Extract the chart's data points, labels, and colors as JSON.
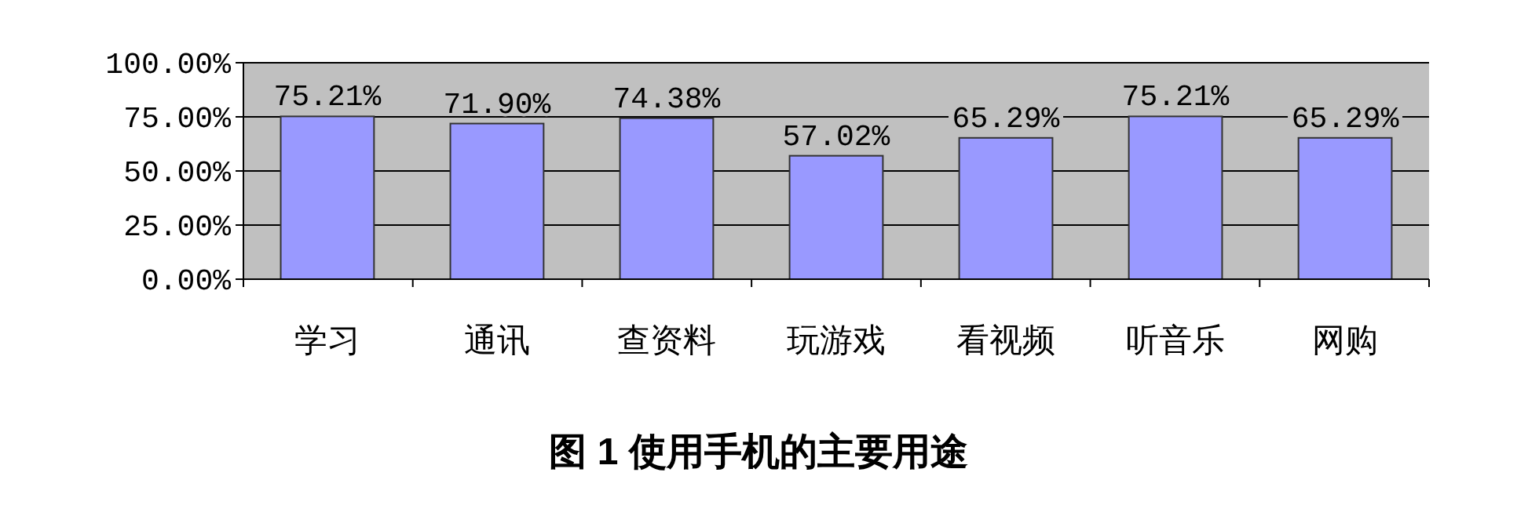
{
  "chart_data": {
    "type": "bar",
    "title": "图 1  使用手机的主要用途",
    "categories": [
      "学习",
      "通讯",
      "查资料",
      "玩游戏",
      "看视频",
      "听音乐",
      "网购"
    ],
    "values": [
      75.21,
      71.9,
      74.38,
      57.02,
      65.29,
      75.21,
      65.29
    ],
    "value_labels": [
      "75.21%",
      "71.90%",
      "74.38%",
      "57.02%",
      "65.29%",
      "75.21%",
      "65.29%"
    ],
    "color": "#9999ff",
    "ylim": [
      0,
      100
    ],
    "yticks": [
      {
        "value": 0,
        "label": "0.00%"
      },
      {
        "value": 25,
        "label": "25.00%"
      },
      {
        "value": 50,
        "label": "50.00%"
      },
      {
        "value": 75,
        "label": "75.00%"
      },
      {
        "value": 100,
        "label": "100.00%"
      }
    ],
    "grid": "y"
  }
}
